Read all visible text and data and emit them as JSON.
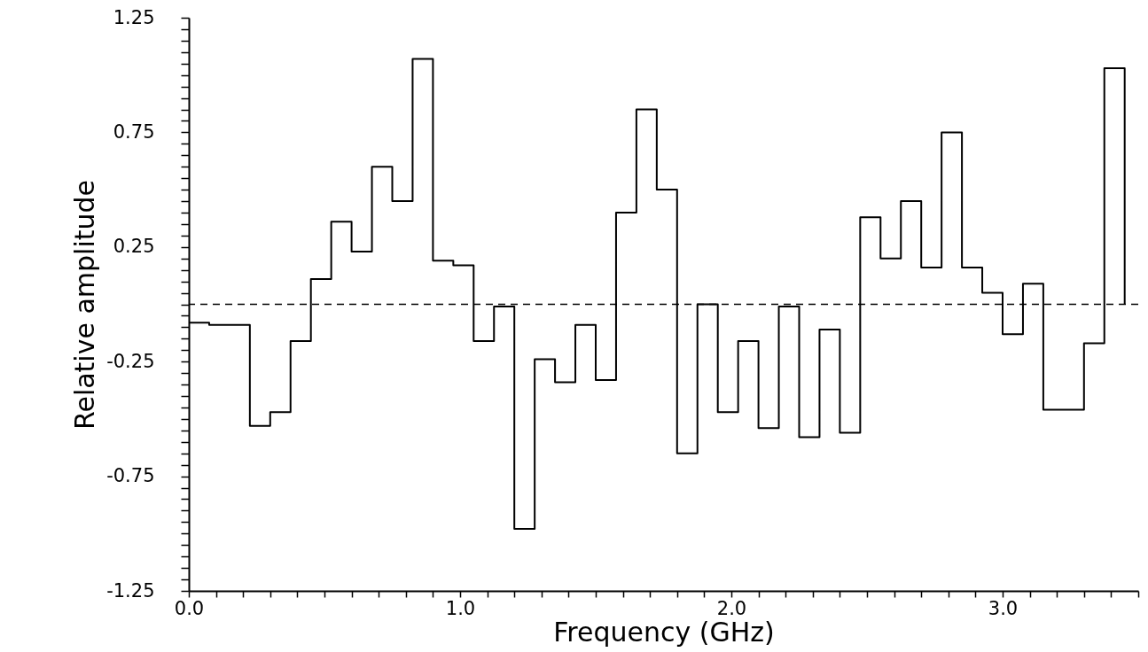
{
  "chart_data": {
    "type": "step",
    "xlabel": "Frequency (GHz)",
    "ylabel": "Relative amplitude",
    "x": [
      0,
      0.075,
      0.15,
      0.225,
      0.3,
      0.375,
      0.45,
      0.525,
      0.6,
      0.675,
      0.75,
      0.825,
      0.9,
      0.975,
      1.05,
      1.125,
      1.2,
      1.275,
      1.35,
      1.425,
      1.5,
      1.575,
      1.65,
      1.725,
      1.8,
      1.875,
      1.95,
      2.025,
      2.1,
      2.175,
      2.25,
      2.325,
      2.4,
      2.475,
      2.55,
      2.625,
      2.7,
      2.775,
      2.85,
      2.925,
      3.0,
      3.075,
      3.15,
      3.225,
      3.3,
      3.375,
      3.45
    ],
    "series": [
      {
        "color": "#000000",
        "values": [
          -0.08,
          -0.09,
          -0.09,
          -0.53,
          -0.47,
          -0.16,
          0.11,
          0.36,
          0.23,
          0.6,
          0.45,
          1.07,
          0.19,
          0.17,
          -0.16,
          -0.01,
          -0.98,
          -0.24,
          -0.34,
          -0.09,
          -0.33,
          0.4,
          0.85,
          0.5,
          -0.65,
          0.0,
          -0.47,
          -0.16,
          -0.54,
          -0.01,
          -0.58,
          -0.11,
          -0.56,
          0.38,
          0.2,
          0.45,
          0.16,
          0.75,
          0.16,
          0.05,
          -0.13,
          0.09,
          -0.46,
          -0.46,
          -0.17,
          1.03,
          0.0
        ]
      }
    ],
    "xlim": [
      0,
      3.5
    ],
    "ylim": [
      -1.25,
      1.25
    ],
    "xticks": [
      {
        "value": 0,
        "label": "0.0"
      },
      {
        "value": 0.1,
        "label": null
      },
      {
        "value": 0.2,
        "label": null
      },
      {
        "value": 0.3,
        "label": null
      },
      {
        "value": 0.4,
        "label": null
      },
      {
        "value": 0.5,
        "label": null
      },
      {
        "value": 0.6,
        "label": null
      },
      {
        "value": 0.7,
        "label": null
      },
      {
        "value": 0.8,
        "label": null
      },
      {
        "value": 0.9,
        "label": null
      },
      {
        "value": 1,
        "label": "1.0"
      },
      {
        "value": 1.1,
        "label": null
      },
      {
        "value": 1.2,
        "label": null
      },
      {
        "value": 1.3,
        "label": null
      },
      {
        "value": 1.4,
        "label": null
      },
      {
        "value": 1.5,
        "label": null
      },
      {
        "value": 1.6,
        "label": null
      },
      {
        "value": 1.7,
        "label": null
      },
      {
        "value": 1.8,
        "label": null
      },
      {
        "value": 1.9,
        "label": null
      },
      {
        "value": 2,
        "label": "2.0"
      },
      {
        "value": 2.1,
        "label": null
      },
      {
        "value": 2.2,
        "label": null
      },
      {
        "value": 2.3,
        "label": null
      },
      {
        "value": 2.4,
        "label": null
      },
      {
        "value": 2.5,
        "label": null
      },
      {
        "value": 2.6,
        "label": null
      },
      {
        "value": 2.7,
        "label": null
      },
      {
        "value": 2.8,
        "label": null
      },
      {
        "value": 2.9,
        "label": null
      },
      {
        "value": 3,
        "label": "3.0"
      },
      {
        "value": 3.1,
        "label": null
      },
      {
        "value": 3.2,
        "label": null
      },
      {
        "value": 3.3,
        "label": null
      },
      {
        "value": 3.4,
        "label": null
      },
      {
        "value": 3.5,
        "label": null
      }
    ],
    "yticks": [
      -1.25,
      {
        "value": -1.2,
        "label": null
      },
      {
        "value": -1.15,
        "label": null
      },
      {
        "value": -1.1,
        "label": null
      },
      {
        "value": -1.05,
        "label": null
      },
      {
        "value": -1.0,
        "label": null
      },
      {
        "value": -0.95,
        "label": null
      },
      {
        "value": -0.9,
        "label": null
      },
      {
        "value": -0.85,
        "label": null
      },
      {
        "value": -0.8,
        "label": null
      },
      -0.75,
      {
        "value": -0.7,
        "label": null
      },
      {
        "value": -0.65,
        "label": null
      },
      {
        "value": -0.6,
        "label": null
      },
      {
        "value": -0.55,
        "label": null
      },
      {
        "value": -0.5,
        "label": null
      },
      {
        "value": -0.45,
        "label": null
      },
      {
        "value": -0.4,
        "label": null
      },
      {
        "value": -0.35,
        "label": null
      },
      {
        "value": -0.3,
        "label": null
      },
      -0.25,
      {
        "value": -0.2,
        "label": null
      },
      {
        "value": -0.15,
        "label": null
      },
      {
        "value": -0.1,
        "label": null
      },
      {
        "value": -0.05,
        "label": null
      },
      {
        "value": 0,
        "label": null
      },
      {
        "value": 0.05,
        "label": null
      },
      {
        "value": 0.1,
        "label": null
      },
      {
        "value": 0.15,
        "label": null
      },
      {
        "value": 0.2,
        "label": null
      },
      0.25,
      {
        "value": 0.3,
        "label": null
      },
      {
        "value": 0.35,
        "label": null
      },
      {
        "value": 0.4,
        "label": null
      },
      {
        "value": 0.45,
        "label": null
      },
      {
        "value": 0.5,
        "label": null
      },
      {
        "value": 0.55,
        "label": null
      },
      {
        "value": 0.6,
        "label": null
      },
      {
        "value": 0.65,
        "label": null
      },
      {
        "value": 0.7,
        "label": null
      },
      0.75,
      {
        "value": 0.8,
        "label": null
      },
      {
        "value": 0.85,
        "label": null
      },
      {
        "value": 0.9,
        "label": null
      },
      {
        "value": 0.95,
        "label": null
      },
      {
        "value": 1.0,
        "label": null
      },
      {
        "value": 1.05,
        "label": null
      },
      {
        "value": 1.1,
        "label": null
      },
      {
        "value": 1.15,
        "label": null
      },
      {
        "value": 1.2,
        "label": null
      },
      1.25
    ],
    "ref_lines": [
      {
        "axis": "y",
        "value": 0,
        "line_style": "dashed"
      }
    ],
    "grid": false,
    "line_style": "solid",
    "marker": "none"
  }
}
